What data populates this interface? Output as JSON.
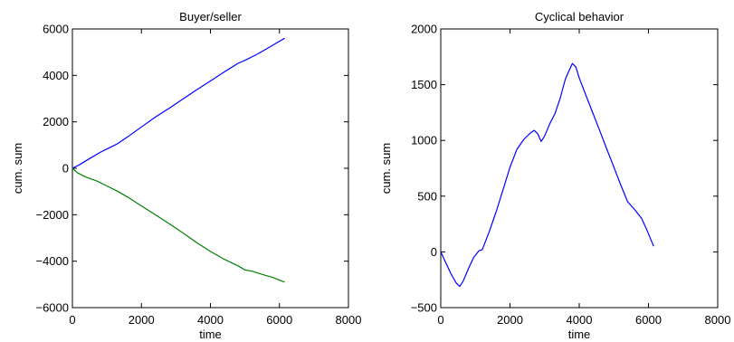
{
  "chart_data": [
    {
      "type": "line",
      "title": "Buyer/seller",
      "xlabel": "time",
      "ylabel": "cum. sum",
      "xlim": [
        0,
        8000
      ],
      "ylim": [
        -6000,
        6000
      ],
      "xticks": [
        0,
        2000,
        4000,
        6000,
        8000
      ],
      "yticks": [
        -6000,
        -4000,
        -2000,
        0,
        2000,
        4000,
        6000
      ],
      "xtick_labels": [
        "0",
        "2000",
        "4000",
        "6000",
        "8000"
      ],
      "ytick_labels": [
        "−6000",
        "−4000",
        "−2000",
        "0",
        "2000",
        "4000",
        "6000"
      ],
      "grid": false,
      "series": [
        {
          "color": "#0000ff",
          "x": [
            0,
            200,
            500,
            800,
            1000,
            1300,
            1600,
            2000,
            2400,
            2800,
            3200,
            3600,
            4000,
            4400,
            4800,
            5000,
            5300,
            5600,
            5900,
            6150
          ],
          "y": [
            0,
            150,
            420,
            680,
            830,
            1050,
            1350,
            1780,
            2200,
            2580,
            2980,
            3380,
            3760,
            4150,
            4520,
            4650,
            4870,
            5120,
            5380,
            5600
          ]
        },
        {
          "color": "#008000",
          "x": [
            0,
            150,
            400,
            700,
            1000,
            1300,
            1600,
            2000,
            2400,
            2800,
            3200,
            3600,
            4000,
            4400,
            4800,
            5000,
            5200,
            5500,
            5800,
            6150
          ],
          "y": [
            0,
            -200,
            -380,
            -540,
            -760,
            -980,
            -1240,
            -1620,
            -2000,
            -2380,
            -2780,
            -3200,
            -3580,
            -3920,
            -4200,
            -4380,
            -4430,
            -4570,
            -4700,
            -4900
          ]
        }
      ]
    },
    {
      "type": "line",
      "title": "Cyclical behavior",
      "xlabel": "time",
      "ylabel": "cum. sum",
      "xlim": [
        0,
        8000
      ],
      "ylim": [
        -500,
        2000
      ],
      "xticks": [
        0,
        2000,
        4000,
        6000,
        8000
      ],
      "yticks": [
        -500,
        0,
        500,
        1000,
        1500,
        2000
      ],
      "xtick_labels": [
        "0",
        "2000",
        "4000",
        "6000",
        "8000"
      ],
      "ytick_labels": [
        "−500",
        "0",
        "500",
        "1000",
        "1500",
        "2000"
      ],
      "grid": false,
      "series": [
        {
          "color": "#0000ff",
          "x": [
            0,
            150,
            300,
            450,
            550,
            650,
            800,
            950,
            1100,
            1200,
            1400,
            1600,
            1800,
            2000,
            2200,
            2400,
            2600,
            2700,
            2800,
            2900,
            3000,
            3150,
            3300,
            3450,
            3600,
            3700,
            3800,
            3900,
            4000,
            4200,
            4400,
            4600,
            4800,
            5000,
            5200,
            5400,
            5600,
            5800,
            5950,
            6150
          ],
          "y": [
            0,
            -100,
            -200,
            -280,
            -310,
            -260,
            -150,
            -50,
            10,
            20,
            180,
            360,
            560,
            760,
            920,
            1010,
            1070,
            1090,
            1060,
            990,
            1040,
            1150,
            1240,
            1380,
            1550,
            1620,
            1690,
            1660,
            1560,
            1400,
            1240,
            1080,
            920,
            760,
            600,
            450,
            380,
            300,
            200,
            50
          ]
        }
      ]
    }
  ]
}
